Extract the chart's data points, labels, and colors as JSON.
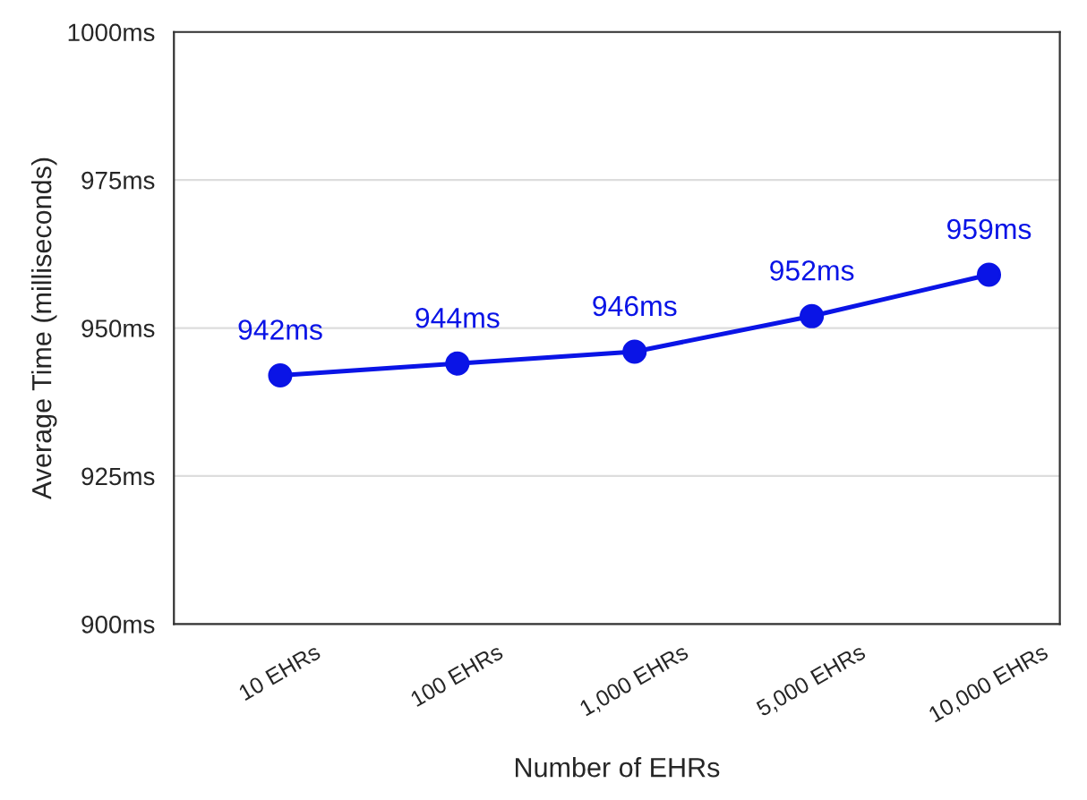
{
  "chart_data": {
    "type": "line",
    "xlabel": "Number of EHRs",
    "ylabel": "Average Time (milliseconds)",
    "categories": [
      "10 EHRs",
      "100 EHRs",
      "1,000 EHRs",
      "5,000 EHRs",
      "10,000 EHRs"
    ],
    "series": [
      {
        "color": "#0a14e6",
        "values": [
          942,
          944,
          946,
          952,
          959
        ],
        "value_labels": [
          "942ms",
          "944ms",
          "946ms",
          "952ms",
          "959ms"
        ]
      }
    ],
    "ylim": [
      900,
      1000
    ],
    "yticks": [
      {
        "value": 900,
        "label": "900ms"
      },
      {
        "value": 925,
        "label": "925ms"
      },
      {
        "value": 950,
        "label": "950ms"
      },
      {
        "value": 975,
        "label": "975ms"
      },
      {
        "value": 1000,
        "label": "1000ms"
      }
    ],
    "grid": "y",
    "marker": "circle",
    "line_style": "solid"
  }
}
